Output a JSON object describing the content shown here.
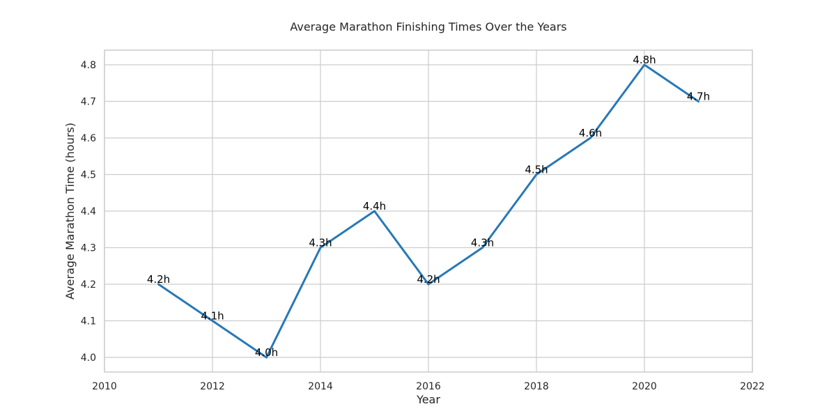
{
  "chart_data": {
    "type": "line",
    "title": "Average Marathon Finishing Times Over the Years",
    "xlabel": "Year",
    "ylabel": "Average Marathon Time (hours)",
    "xlim": [
      2010,
      2022
    ],
    "ylim": [
      3.96,
      4.84
    ],
    "x_ticks": [
      "2010",
      "2012",
      "2014",
      "2016",
      "2018",
      "2020",
      "2022"
    ],
    "y_ticks": [
      "4.0",
      "4.1",
      "4.2",
      "4.3",
      "4.4",
      "4.5",
      "4.6",
      "4.7",
      "4.8"
    ],
    "grid": true,
    "x": [
      2011,
      2012,
      2013,
      2014,
      2015,
      2016,
      2017,
      2018,
      2019,
      2020,
      2021
    ],
    "series": [
      {
        "values": [
          4.2,
          4.1,
          4.0,
          4.3,
          4.4,
          4.2,
          4.3,
          4.5,
          4.6,
          4.8,
          4.7
        ],
        "color": "#2878b5"
      }
    ],
    "data_labels": [
      "4.2h",
      "4.1h",
      "4.0h",
      "4.3h",
      "4.4h",
      "4.2h",
      "4.3h",
      "4.5h",
      "4.6h",
      "4.8h",
      "4.7h"
    ]
  },
  "colors": {
    "grid": "#cccccc",
    "frame": "#cccccc",
    "text": "#262626",
    "label": "#000000"
  }
}
